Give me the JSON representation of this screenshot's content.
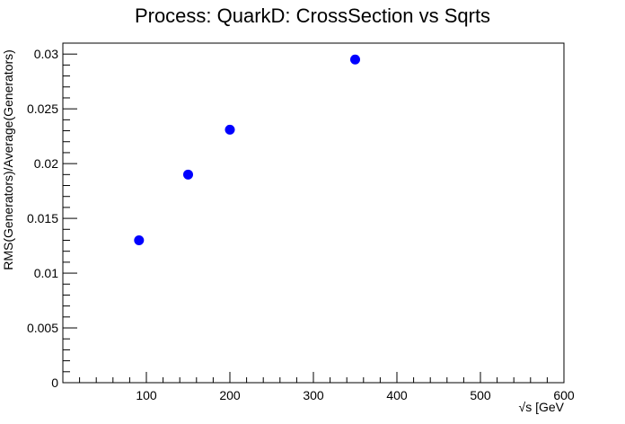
{
  "chart_data": {
    "type": "scatter",
    "title": "Process: QuarkD: CrossSection vs Sqrts",
    "xlabel": "√s [GeV",
    "ylabel": "RMS(Generators)/Average(Generators)",
    "xlim": [
      0,
      600
    ],
    "ylim": [
      0,
      0.031
    ],
    "x_ticks": [
      100,
      200,
      300,
      400,
      500,
      600
    ],
    "y_ticks": [
      0,
      0.005,
      0.01,
      0.015,
      0.02,
      0.025,
      0.03
    ],
    "x_tick_labels": [
      "100",
      "200",
      "300",
      "400",
      "500",
      "600"
    ],
    "y_tick_labels": [
      "0",
      "0.005",
      "0.01",
      "0.015",
      "0.02",
      "0.025",
      "0.03"
    ],
    "grid": false,
    "marker_color": "#0000ff",
    "series": [
      {
        "x": [
          91.2,
          150,
          200,
          350
        ],
        "y": [
          0.013,
          0.019,
          0.0231,
          0.0295
        ]
      }
    ]
  }
}
